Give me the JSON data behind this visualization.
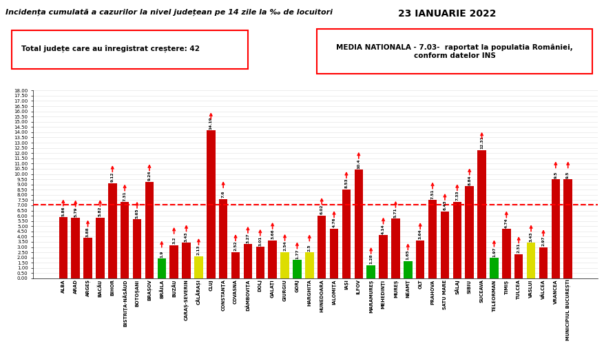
{
  "title": "Incidența cumulată a cazurilor la nivel județean pe 14 zile la ‰ de locuitori",
  "date": "23 IANUARIE 2022",
  "subtitle_left": "Total județe care au înregistrat creștere: 42",
  "subtitle_right": "MEDIA NATIONALA - 7.03-  raportat la populatia României,\nconform datelor INS",
  "national_avg": 7.03,
  "categories": [
    "ALBA",
    "ARAD",
    "ARGEȘ",
    "BACĂU",
    "BIHOR",
    "BISTRIŢA-NĂSĂUD",
    "BOTOȘANI",
    "BRAȘOV",
    "BRĂILA",
    "BUZĂU",
    "CARAȘ-SEVERIN",
    "CĂLĂRAȘI",
    "CLUJ",
    "CONSTANŢA",
    "COVASNA",
    "DÂMBOVIŢA",
    "DOLJ",
    "GALAŢI",
    "GIURGIU",
    "GORJ",
    "HARGHITA",
    "HUNEDOARA",
    "IALOMIŢA",
    "IAȘI",
    "ILFOV",
    "MARAMUREȘ",
    "MEHEDINŢI",
    "MUREȘ",
    "NEAMŢ",
    "OLT",
    "PRAHOVA",
    "SATU MARE",
    "SĂLAJ",
    "SIBIU",
    "SUCEAVA",
    "TELEORMAN",
    "TIMIȘ",
    "TULCEA",
    "VASLUI",
    "VÂLCEA",
    "VRANCEA",
    "MUNICIPIUL BUCUREȘTI"
  ],
  "values": [
    5.86,
    5.79,
    3.88,
    5.82,
    9.12,
    7.31,
    5.65,
    9.24,
    1.9,
    3.2,
    3.43,
    2.13,
    14.19,
    7.6,
    2.52,
    3.27,
    3.01,
    3.66,
    2.54,
    1.77,
    2.5,
    6.02,
    4.76,
    8.53,
    10.4,
    1.28,
    4.14,
    5.71,
    1.65,
    3.64,
    7.51,
    6.43,
    7.33,
    8.84,
    12.31,
    1.97,
    4.74,
    2.31,
    3.43,
    2.97,
    9.5,
    9.5
  ],
  "colors": [
    "#cc0000",
    "#cc0000",
    "#cc0000",
    "#cc0000",
    "#cc0000",
    "#cc0000",
    "#cc0000",
    "#cc0000",
    "#00aa00",
    "#cc0000",
    "#cc0000",
    "#dddd00",
    "#cc0000",
    "#cc0000",
    "#cc0000",
    "#cc0000",
    "#cc0000",
    "#cc0000",
    "#dddd00",
    "#00aa00",
    "#dddd00",
    "#cc0000",
    "#cc0000",
    "#cc0000",
    "#cc0000",
    "#00aa00",
    "#cc0000",
    "#cc0000",
    "#00aa00",
    "#cc0000",
    "#cc0000",
    "#cc0000",
    "#cc0000",
    "#cc0000",
    "#cc0000",
    "#00aa00",
    "#cc0000",
    "#cc0000",
    "#dddd00",
    "#cc0000",
    "#cc0000",
    "#cc0000"
  ],
  "ylim": [
    0,
    18.0
  ],
  "yticks": [
    0.0,
    0.5,
    1.0,
    1.5,
    2.0,
    2.5,
    3.0,
    3.5,
    4.0,
    4.5,
    5.0,
    5.5,
    6.0,
    6.5,
    7.0,
    7.5,
    8.0,
    8.5,
    9.0,
    9.5,
    10.0,
    10.5,
    11.0,
    11.5,
    12.0,
    12.5,
    13.0,
    13.5,
    14.0,
    14.5,
    15.0,
    15.5,
    16.0,
    16.5,
    17.0,
    17.5,
    18.0
  ]
}
